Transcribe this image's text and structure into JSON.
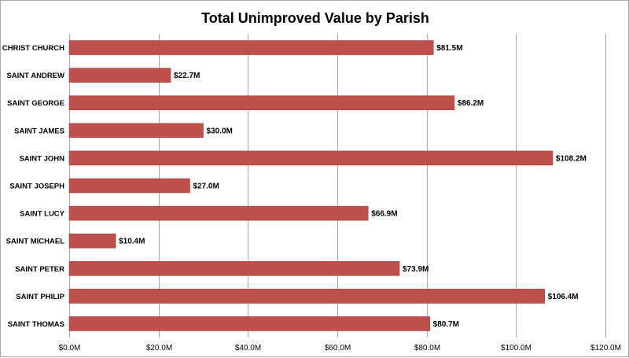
{
  "chart_data": {
    "type": "bar",
    "orientation": "horizontal",
    "title": "Total Unimproved Value by Parish",
    "xlabel": "",
    "ylabel": "",
    "categories": [
      "CHRIST CHURCH",
      "SAINT ANDREW",
      "SAINT GEORGE",
      "SAINT JAMES",
      "SAINT JOHN",
      "SAINT JOSEPH",
      "SAINT LUCY",
      "SAINT MICHAEL",
      "SAINT PETER",
      "SAINT PHILIP",
      "SAINT THOMAS"
    ],
    "values": [
      81.5,
      22.7,
      86.2,
      30.0,
      108.2,
      27.0,
      66.9,
      10.4,
      73.9,
      106.4,
      80.7
    ],
    "data_labels": [
      "$81.5M",
      "$22.7M",
      "$86.2M",
      "$30.0M",
      "$108.2M",
      "$27.0M",
      "$66.9M",
      "$10.4M",
      "$73.9M",
      "$106.4M",
      "$80.7M"
    ],
    "xlim": [
      0,
      120
    ],
    "xticks": [
      0,
      20,
      40,
      60,
      80,
      100,
      120
    ],
    "xtick_labels": [
      "$0.0M",
      "$20.0M",
      "$40.0M",
      "$60.0M",
      "$80.0M",
      "$100.0M",
      "$120.0M"
    ],
    "grid": "vertical",
    "legend": "none",
    "colors": {
      "bar": "#c0504d",
      "bar_edge": "#9c3c3a",
      "grid": "#a6a6a6"
    }
  }
}
